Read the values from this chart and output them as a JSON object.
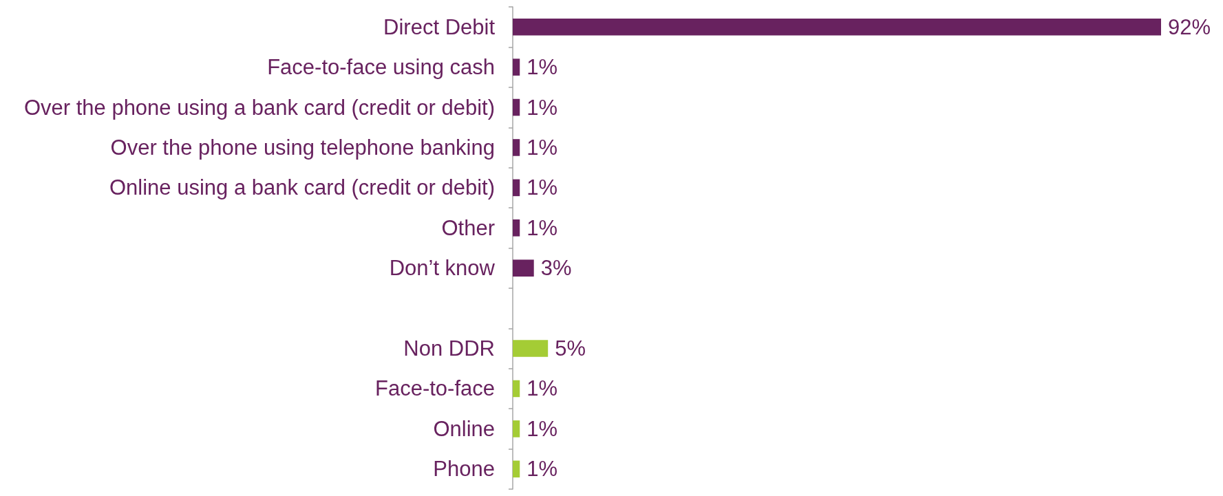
{
  "chart_data": {
    "type": "bar",
    "orientation": "horizontal",
    "categories": [
      "Direct Debit",
      "Face-to-face using cash",
      "Over the phone using a bank card (credit or debit)",
      "Over the phone using telephone banking",
      "Online using a bank card (credit or debit)",
      "Other",
      "Don’t know",
      null,
      "Non DDR",
      "Face-to-face",
      "Online",
      "Phone"
    ],
    "values": [
      92,
      1,
      1,
      1,
      1,
      1,
      3,
      null,
      5,
      1,
      1,
      1
    ],
    "colors": [
      "#68225f",
      "#68225f",
      "#68225f",
      "#68225f",
      "#68225f",
      "#68225f",
      "#68225f",
      "#68225f",
      "#a4cc35",
      "#a4cc35",
      "#a4cc35",
      "#a4cc35"
    ],
    "value_labels": [
      "92%",
      "1%",
      "1%",
      "1%",
      "1%",
      "1%",
      "3%",
      null,
      "5%",
      "1%",
      "1%",
      "1%"
    ],
    "tick_labels": "y"
  }
}
